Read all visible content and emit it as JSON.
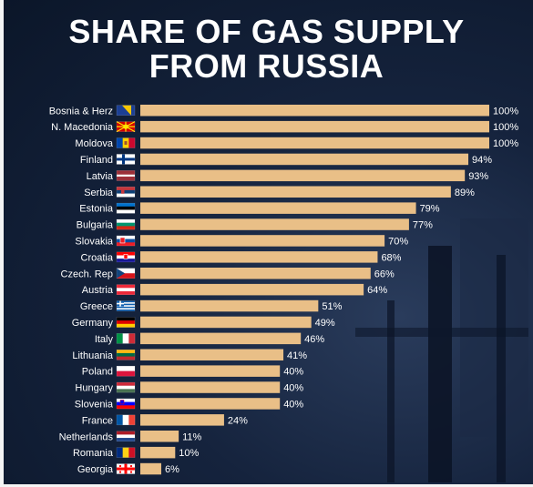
{
  "colors": {
    "bar": "#e9bf87",
    "background": "#0f1c33",
    "text": "#ffffff"
  },
  "title_lines": [
    "SHARE OF GAS SUPPLY",
    "FROM RUSSIA"
  ],
  "chart_data": {
    "type": "bar",
    "orientation": "horizontal",
    "title": "SHARE OF GAS SUPPLY FROM RUSSIA",
    "xlabel": "",
    "ylabel": "",
    "xlim": [
      0,
      100
    ],
    "grid": false,
    "categories": [
      "Bosnia & Herz",
      "N. Macedonia",
      "Moldova",
      "Finland",
      "Latvia",
      "Serbia",
      "Estonia",
      "Bulgaria",
      "Slovakia",
      "Croatia",
      "Czech. Rep",
      "Austria",
      "Greece",
      "Germany",
      "Italy",
      "Lithuania",
      "Poland",
      "Hungary",
      "Slovenia",
      "France",
      "Netherlands",
      "Romania",
      "Georgia"
    ],
    "values": [
      100,
      100,
      100,
      94,
      93,
      89,
      79,
      77,
      70,
      68,
      66,
      64,
      51,
      49,
      46,
      41,
      40,
      40,
      40,
      24,
      11,
      10,
      6
    ],
    "value_labels": [
      "100%",
      "100%",
      "100%",
      "94%",
      "93%",
      "89%",
      "79%",
      "77%",
      "70%",
      "68%",
      "66%",
      "64%",
      "51%",
      "49%",
      "46%",
      "41%",
      "40%",
      "40%",
      "40%",
      "24%",
      "11%",
      "10%",
      "6%"
    ],
    "flags": [
      "bosnia-flag-icon",
      "north-macedonia-flag-icon",
      "moldova-flag-icon",
      "finland-flag-icon",
      "latvia-flag-icon",
      "serbia-flag-icon",
      "estonia-flag-icon",
      "bulgaria-flag-icon",
      "slovakia-flag-icon",
      "croatia-flag-icon",
      "czech-flag-icon",
      "austria-flag-icon",
      "greece-flag-icon",
      "germany-flag-icon",
      "italy-flag-icon",
      "lithuania-flag-icon",
      "poland-flag-icon",
      "hungary-flag-icon",
      "slovenia-flag-icon",
      "france-flag-icon",
      "netherlands-flag-icon",
      "romania-flag-icon",
      "georgia-flag-icon"
    ]
  }
}
